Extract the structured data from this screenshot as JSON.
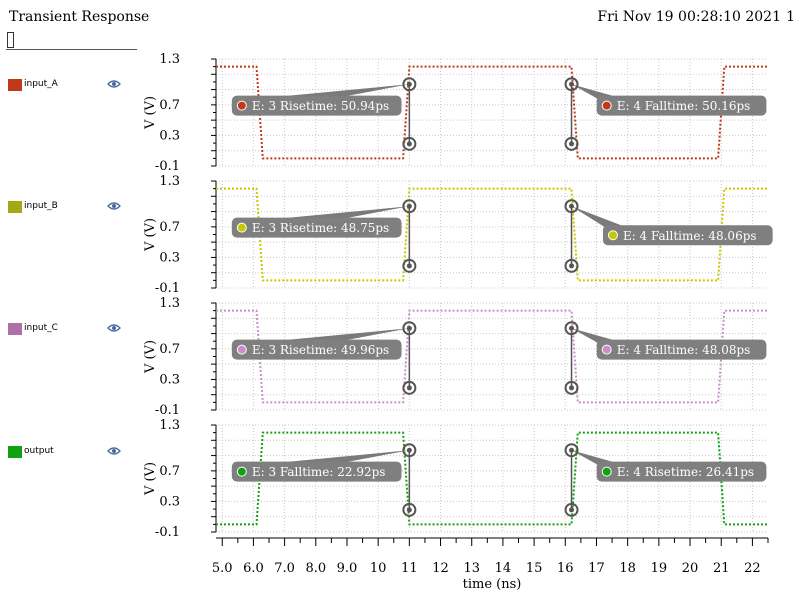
{
  "window": {
    "title": "Transient Response",
    "datetime": "Fri Nov 19 00:28:10 2021",
    "page": "1"
  },
  "search": {
    "value": ""
  },
  "legend": [
    {
      "label": "input_A",
      "color": "#c0391b",
      "icon": "eye-icon"
    },
    {
      "label": "input_B",
      "color": "#a3a816",
      "icon": "eye-icon"
    },
    {
      "label": "input_C",
      "color": "#b06fa8",
      "icon": "eye-icon"
    },
    {
      "label": "output",
      "color": "#10a010",
      "icon": "eye-icon"
    }
  ],
  "chart_data": {
    "type": "line",
    "xlabel": "time (ns)",
    "x_ticks": [
      "5.0",
      "6.0",
      "7.0",
      "8.0",
      "9.0",
      "10",
      "11",
      "12",
      "13",
      "14",
      "15",
      "16",
      "17",
      "18",
      "19",
      "20",
      "21",
      "22"
    ],
    "xlim": [
      4.8,
      22.5
    ],
    "ylabel": "V (V)",
    "y_ticks": [
      "1.3",
      "0.7",
      "0.3",
      "-0.1"
    ],
    "ylim": [
      -0.1,
      1.3
    ],
    "grid": true,
    "panels": [
      {
        "series": "input_A",
        "color": "#c0391b",
        "points": [
          [
            4.8,
            1.2
          ],
          [
            6.1,
            1.2
          ],
          [
            6.3,
            0.0
          ],
          [
            10.8,
            0.0
          ],
          [
            11.0,
            1.2
          ],
          [
            16.2,
            1.2
          ],
          [
            16.4,
            0.0
          ],
          [
            20.9,
            0.0
          ],
          [
            21.1,
            1.2
          ],
          [
            22.5,
            1.2
          ]
        ],
        "markers": [
          [
            11.0,
            0.97
          ],
          [
            11.0,
            0.19
          ],
          [
            16.2,
            0.97
          ],
          [
            16.2,
            0.19
          ]
        ],
        "annotations": [
          {
            "text": "E: 3 Risetime: 50.94ps",
            "x": 5.5,
            "y": 0.69,
            "target": [
              11.0,
              0.97
            ]
          },
          {
            "text": "E: 4 Falltime: 50.16ps",
            "x": 17.2,
            "y": 0.69,
            "target": [
              16.2,
              0.97
            ]
          }
        ]
      },
      {
        "series": "input_B",
        "color": "#c8c800",
        "points": [
          [
            4.8,
            1.2
          ],
          [
            6.1,
            1.2
          ],
          [
            6.3,
            0.0
          ],
          [
            10.8,
            0.0
          ],
          [
            11.0,
            1.2
          ],
          [
            16.2,
            1.2
          ],
          [
            16.4,
            0.0
          ],
          [
            20.9,
            0.0
          ],
          [
            21.1,
            1.2
          ],
          [
            22.5,
            1.2
          ]
        ],
        "markers": [
          [
            11.0,
            0.97
          ],
          [
            11.0,
            0.19
          ],
          [
            16.2,
            0.97
          ],
          [
            16.2,
            0.19
          ]
        ],
        "annotations": [
          {
            "text": "E: 3 Risetime: 48.75ps",
            "x": 5.5,
            "y": 0.69,
            "target": [
              11.0,
              0.97
            ]
          },
          {
            "text": "E: 4 Falltime: 48.06ps",
            "x": 17.4,
            "y": 0.59,
            "target": [
              16.2,
              0.97
            ]
          }
        ]
      },
      {
        "series": "input_C",
        "color": "#c890c8",
        "points": [
          [
            4.8,
            1.2
          ],
          [
            6.1,
            1.2
          ],
          [
            6.3,
            0.0
          ],
          [
            10.8,
            0.0
          ],
          [
            11.0,
            1.2
          ],
          [
            16.2,
            1.2
          ],
          [
            16.4,
            0.0
          ],
          [
            20.9,
            0.0
          ],
          [
            21.1,
            1.2
          ],
          [
            22.5,
            1.2
          ]
        ],
        "markers": [
          [
            11.0,
            0.97
          ],
          [
            11.0,
            0.19
          ],
          [
            16.2,
            0.97
          ],
          [
            16.2,
            0.19
          ]
        ],
        "annotations": [
          {
            "text": "E: 3 Risetime: 49.96ps",
            "x": 5.5,
            "y": 0.69,
            "target": [
              11.0,
              0.97
            ]
          },
          {
            "text": "E: 4 Falltime: 48.08ps",
            "x": 17.2,
            "y": 0.69,
            "target": [
              16.2,
              0.97
            ]
          }
        ]
      },
      {
        "series": "output",
        "color": "#10a010",
        "points": [
          [
            4.8,
            0.0
          ],
          [
            6.1,
            0.0
          ],
          [
            6.3,
            1.2
          ],
          [
            10.8,
            1.2
          ],
          [
            11.0,
            0.0
          ],
          [
            16.2,
            0.0
          ],
          [
            16.4,
            1.2
          ],
          [
            20.9,
            1.2
          ],
          [
            21.1,
            0.0
          ],
          [
            22.5,
            0.0
          ]
        ],
        "markers": [
          [
            11.0,
            0.97
          ],
          [
            11.0,
            0.19
          ],
          [
            16.2,
            0.97
          ],
          [
            16.2,
            0.19
          ]
        ],
        "annotations": [
          {
            "text": "E: 3 Falltime: 22.92ps",
            "x": 5.5,
            "y": 0.69,
            "target": [
              11.0,
              0.97
            ]
          },
          {
            "text": "E: 4 Risetime: 26.41ps",
            "x": 17.2,
            "y": 0.69,
            "target": [
              16.2,
              0.97
            ]
          }
        ]
      }
    ]
  }
}
